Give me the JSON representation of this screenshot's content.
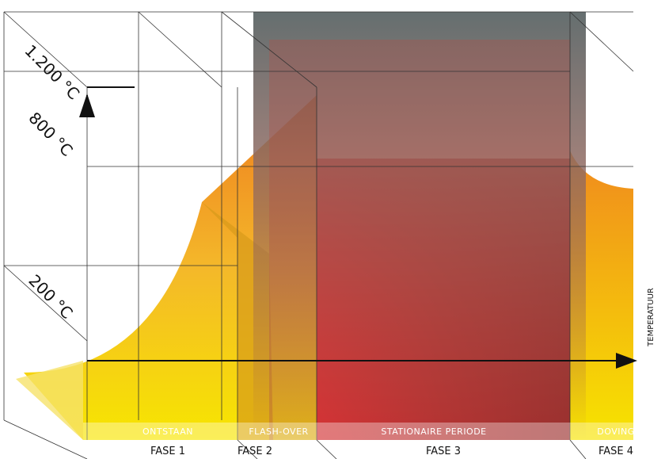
{
  "axis": {
    "label": "TEMPERATUUR",
    "levels": [
      "1.200 °C",
      "800 °C",
      "200 °C"
    ]
  },
  "phases": [
    {
      "name": "ONTSTAAN",
      "label": "FASE 1"
    },
    {
      "name": "FLASH-OVER",
      "label": "FASE 2"
    },
    {
      "name": "STATIONAIRE PERIODE",
      "label": "FASE 3"
    },
    {
      "name": "DOVING",
      "label": "FASE 4"
    }
  ]
}
